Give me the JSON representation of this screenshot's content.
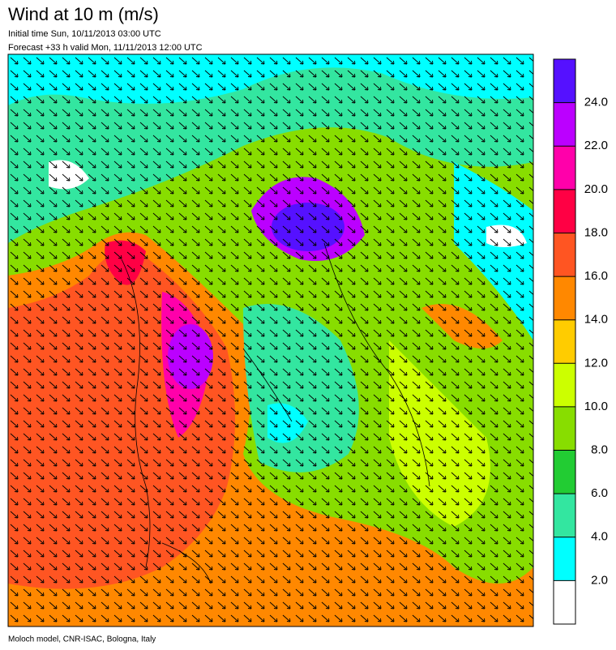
{
  "title": "Wind at 10 m (m/s)",
  "initial_time": "Initial time  Sun, 10/11/2013 03:00 UTC",
  "forecast": "Forecast +33 h valid  Mon, 11/11/2013 12:00 UTC",
  "credit": "Moloch model, CNR-ISAC, Bologna, Italy",
  "colorbar": {
    "lim": [
      0,
      26
    ],
    "colors": [
      "#ffffff",
      "#00ffff",
      "#33e6a0",
      "#22cc33",
      "#88dd00",
      "#ccff00",
      "#ffcc00",
      "#ff8800",
      "#ff5522",
      "#ff0044",
      "#ff00aa",
      "#bb00ff",
      "#5511ff"
    ],
    "ticks": [
      {
        "value": 2,
        "label": "2.0"
      },
      {
        "value": 4,
        "label": "4.0"
      },
      {
        "value": 6,
        "label": "6.0"
      },
      {
        "value": 8,
        "label": "8.0"
      },
      {
        "value": 10,
        "label": "10.0"
      },
      {
        "value": 12,
        "label": "12.0"
      },
      {
        "value": 14,
        "label": "14.0"
      },
      {
        "value": 16,
        "label": "16.0"
      },
      {
        "value": 18,
        "label": "18.0"
      },
      {
        "value": 20,
        "label": "20.0"
      },
      {
        "value": 22,
        "label": "22.0"
      },
      {
        "value": 24,
        "label": "24.0"
      }
    ]
  }
}
